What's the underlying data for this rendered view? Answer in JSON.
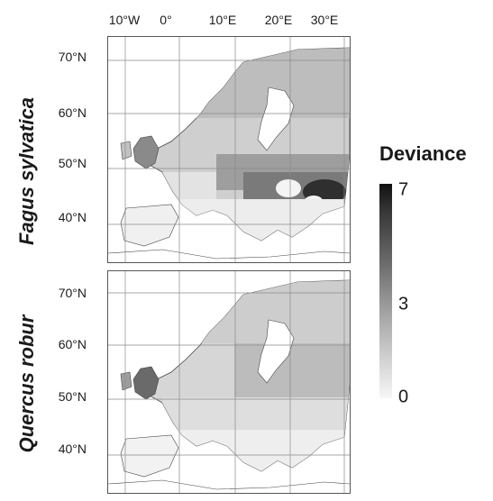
{
  "longitude_labels": [
    "10°W",
    "0°",
    "10°E",
    "20°E",
    "30°E"
  ],
  "latitude_labels": [
    "70°N",
    "60°N",
    "50°N",
    "40°N"
  ],
  "panels": [
    {
      "species": "Fagus sylvatica"
    },
    {
      "species": "Quercus robur"
    }
  ],
  "colorbar": {
    "title": "Deviance",
    "ticks": [
      "7",
      "3",
      "0"
    ],
    "range": [
      0,
      7
    ]
  },
  "colors": {
    "ocean": "#ffffff",
    "grid": "#8a8a8a",
    "low": "#f7f7f7",
    "high": "#111111"
  }
}
